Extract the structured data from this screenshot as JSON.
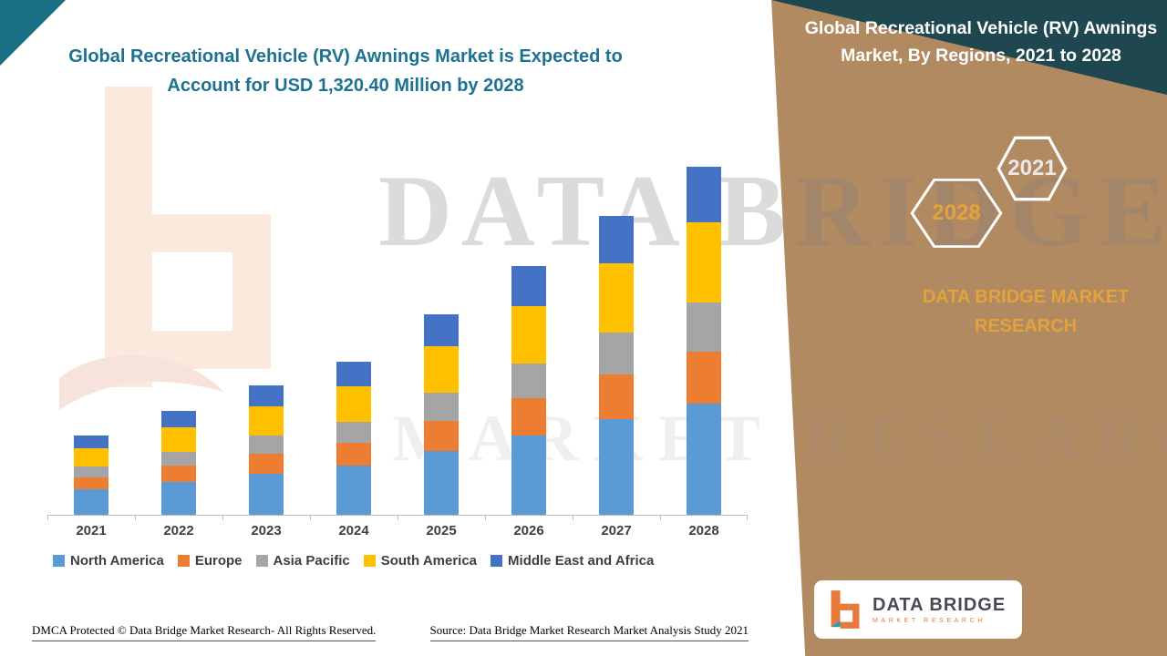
{
  "header": {
    "left_title": "Global Recreational Vehicle (RV) Awnings Market is Expected to Account for USD 1,320.40 Million by 2028"
  },
  "right_panel": {
    "title": "Global Recreational Vehicle (RV) Awnings Market, By Regions, 2021 to 2028",
    "hexagon_top": "2021",
    "hexagon_bottom": "2028",
    "brand_text": "DATA BRIDGE MARKET RESEARCH",
    "logo_name": "DATA BRIDGE",
    "logo_sub": "MARKET RESEARCH"
  },
  "watermark": {
    "line1": "DATA BRIDGE",
    "line2": "MARKET RESEARCH"
  },
  "footer": {
    "dmca": "DMCA Protected © Data Bridge Market Research- All Rights Reserved.",
    "source": "Source: Data Bridge Market Research Market Analysis Study 2021"
  },
  "colors": {
    "panel_tan": "#b28a61",
    "corner_teal": "#176e85",
    "corner_dark": "#1e4750",
    "title_teal": "#1d7291",
    "gold": "#e2a33c"
  },
  "chart_data": {
    "type": "bar",
    "stacked": true,
    "title": "Global Recreational Vehicle (RV) Awnings Market, By Regions, 2021 to 2028",
    "unit": "USD Million",
    "categories": [
      "2021",
      "2022",
      "2023",
      "2024",
      "2025",
      "2026",
      "2027",
      "2028"
    ],
    "series": [
      {
        "name": "North America",
        "color": "#5b9bd5",
        "values": [
          96,
          126,
          157,
          186,
          243,
          302,
          363,
          422
        ]
      },
      {
        "name": "Europe",
        "color": "#ed7d31",
        "values": [
          45,
          59,
          74,
          87,
          114,
          141,
          170,
          198
        ]
      },
      {
        "name": "Asia Pacific",
        "color": "#a5a5a5",
        "values": [
          42,
          55,
          69,
          81,
          106,
          132,
          159,
          185
        ]
      },
      {
        "name": "South America",
        "color": "#ffc000",
        "values": [
          69,
          91,
          113,
          133,
          175,
          217,
          261,
          304
        ]
      },
      {
        "name": "Middle East and Africa",
        "color": "#4472c4",
        "values": [
          48,
          63,
          78,
          93,
          122,
          151,
          180,
          211.4
        ]
      }
    ],
    "totals": [
      300,
      394,
      491,
      580,
      760,
      943,
      1133,
      1320.4
    ],
    "ylim": [
      0,
      1320.4
    ],
    "gridlines": false,
    "legend_position": "bottom"
  }
}
